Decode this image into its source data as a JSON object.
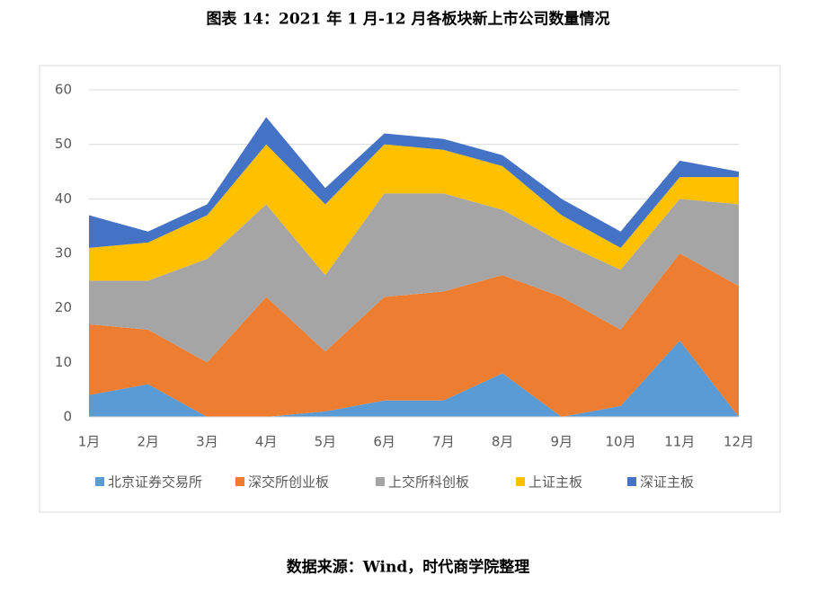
{
  "chart_data": {
    "type": "stacked_area",
    "title": "图表 14：2021 年 1 月-12 月各板块新上市公司数量情况",
    "source": "数据来源：Wind，时代商学院整理",
    "categories": [
      "1月",
      "2月",
      "3月",
      "4月",
      "5月",
      "6月",
      "7月",
      "8月",
      "9月",
      "10月",
      "11月",
      "12月"
    ],
    "series": [
      {
        "name": "北京证券交易所",
        "color": "#5b9bd5",
        "values": [
          4,
          6,
          0,
          0,
          1,
          3,
          3,
          8,
          0,
          2,
          14,
          0
        ]
      },
      {
        "name": "深交所创业板",
        "color": "#ed7d31",
        "values": [
          13,
          10,
          10,
          22,
          11,
          19,
          20,
          18,
          22,
          14,
          16,
          24
        ]
      },
      {
        "name": "上交所科创板",
        "color": "#a5a5a5",
        "values": [
          8,
          9,
          19,
          17,
          14,
          19,
          18,
          12,
          10,
          11,
          10,
          15
        ]
      },
      {
        "name": "上证主板",
        "color": "#ffc000",
        "values": [
          6,
          7,
          8,
          11,
          13,
          9,
          8,
          8,
          5,
          4,
          4,
          5
        ]
      },
      {
        "name": "深证主板",
        "color": "#4472c4",
        "values": [
          6,
          2,
          2,
          5,
          3,
          2,
          2,
          2,
          3,
          3,
          3,
          1
        ]
      }
    ],
    "ylim": [
      0,
      60
    ],
    "yticks": [
      0,
      10,
      20,
      30,
      40,
      50,
      60
    ],
    "grid": true,
    "legend": "bottom"
  }
}
